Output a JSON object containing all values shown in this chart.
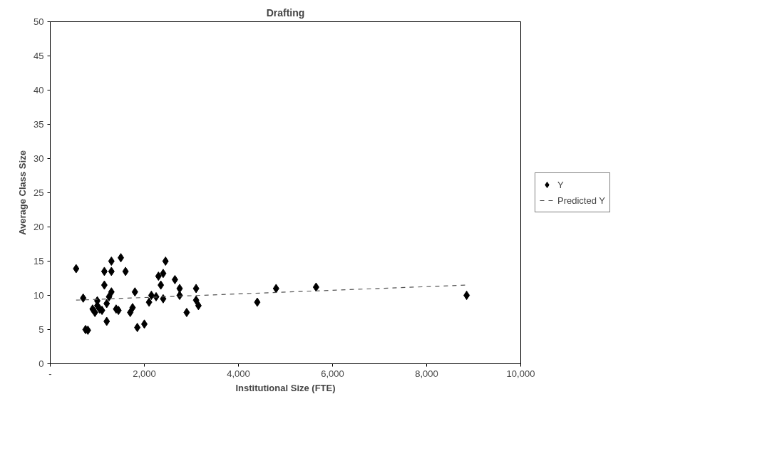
{
  "chart_data": {
    "type": "scatter",
    "title": "Drafting",
    "xlabel": "Institutional Size (FTE)",
    "ylabel": "Average Class Size",
    "xlim": [
      0,
      10000
    ],
    "xticks": [
      {
        "value": 0,
        "label": "-"
      },
      {
        "value": 2000,
        "label": "2,000"
      },
      {
        "value": 4000,
        "label": "4,000"
      },
      {
        "value": 6000,
        "label": "6,000"
      },
      {
        "value": 8000,
        "label": "8,000"
      },
      {
        "value": 10000,
        "label": "10,000"
      }
    ],
    "ylim": [
      0,
      50
    ],
    "yticks": [
      0,
      5,
      10,
      15,
      20,
      25,
      30,
      35,
      40,
      45,
      50
    ],
    "grid": false,
    "legend": "right",
    "marker": "diamond",
    "series": [
      {
        "name": "Y",
        "color": "#000000",
        "x": [
          550,
          700,
          750,
          800,
          900,
          950,
          1000,
          1000,
          1050,
          1100,
          1150,
          1150,
          1200,
          1200,
          1250,
          1300,
          1300,
          1300,
          1400,
          1450,
          1500,
          1600,
          1700,
          1750,
          1800,
          1850,
          2000,
          2100,
          2150,
          2250,
          2300,
          2350,
          2400,
          2400,
          2450,
          2650,
          2750,
          2750,
          2900,
          3100,
          3100,
          3150,
          4400,
          4800,
          5650,
          8850
        ],
        "values": [
          13.9,
          9.6,
          5,
          4.9,
          8,
          7.5,
          9.2,
          8.5,
          8,
          7.8,
          11.5,
          13.5,
          8.8,
          6.2,
          9.8,
          10.5,
          13.5,
          15,
          8,
          7.8,
          15.5,
          13.5,
          7.5,
          8.2,
          10.5,
          5.3,
          5.8,
          9,
          10,
          9.8,
          12.8,
          11.5,
          9.5,
          13.2,
          15,
          12.3,
          11,
          10,
          7.5,
          11,
          9.3,
          8.5,
          9,
          11,
          11.2,
          10
        ]
      },
      {
        "name": "Predicted Y",
        "type": "line",
        "color": "#555555",
        "line_style": "dashed",
        "marker": "none",
        "x": [
          550,
          8850
        ],
        "values": [
          9.3,
          11.5
        ]
      }
    ]
  }
}
